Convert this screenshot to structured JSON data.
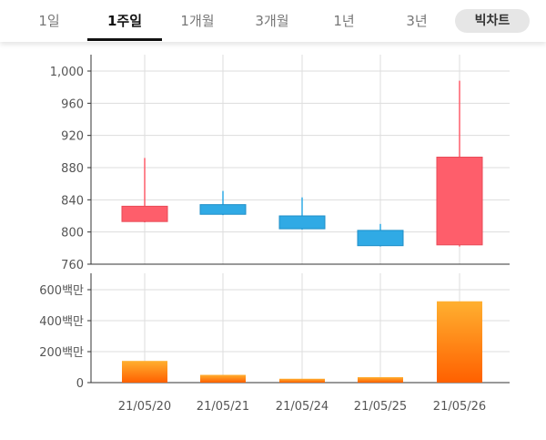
{
  "tabs": [
    {
      "label": "1일",
      "active": false
    },
    {
      "label": "1주일",
      "active": true
    },
    {
      "label": "1개월",
      "active": false
    },
    {
      "label": "3개월",
      "active": false
    },
    {
      "label": "1년",
      "active": false
    },
    {
      "label": "3년",
      "active": false
    }
  ],
  "chart_toggle_label": "빅차트",
  "colors": {
    "up": "#fe5e6b",
    "down": "#30aae5",
    "volume_top": "#ffb030",
    "volume_bottom": "#ff6000",
    "grid": "#dddddd",
    "axis": "#333333",
    "text": "#555555"
  },
  "chart_data": [
    {
      "type": "candlestick",
      "title": "",
      "x": [
        "21/05/20",
        "21/05/21",
        "21/05/24",
        "21/05/25",
        "21/05/26"
      ],
      "ohlc": [
        {
          "open": 813,
          "high": 892,
          "low": 812,
          "close": 832
        },
        {
          "open": 834,
          "high": 851,
          "low": 821,
          "close": 822
        },
        {
          "open": 820,
          "high": 843,
          "low": 803,
          "close": 804
        },
        {
          "open": 802,
          "high": 810,
          "low": 782,
          "close": 783
        },
        {
          "open": 784,
          "high": 988,
          "low": 782,
          "close": 893
        }
      ],
      "ylim": [
        760,
        1010
      ],
      "yticks": [
        760,
        800,
        840,
        880,
        920,
        960,
        1000
      ],
      "ytick_labels": [
        "760",
        "800",
        "840",
        "880",
        "920",
        "960",
        "1,000"
      ],
      "grid": true
    },
    {
      "type": "bar",
      "title": "",
      "categories": [
        "21/05/20",
        "21/05/21",
        "21/05/24",
        "21/05/25",
        "21/05/26"
      ],
      "values": [
        140,
        50,
        25,
        35,
        525
      ],
      "unit": "백만",
      "ylim": [
        0,
        660
      ],
      "yticks": [
        0,
        200,
        400,
        600
      ],
      "ytick_labels": [
        "0",
        "200백만",
        "400백만",
        "600백만"
      ],
      "grid": true
    }
  ]
}
